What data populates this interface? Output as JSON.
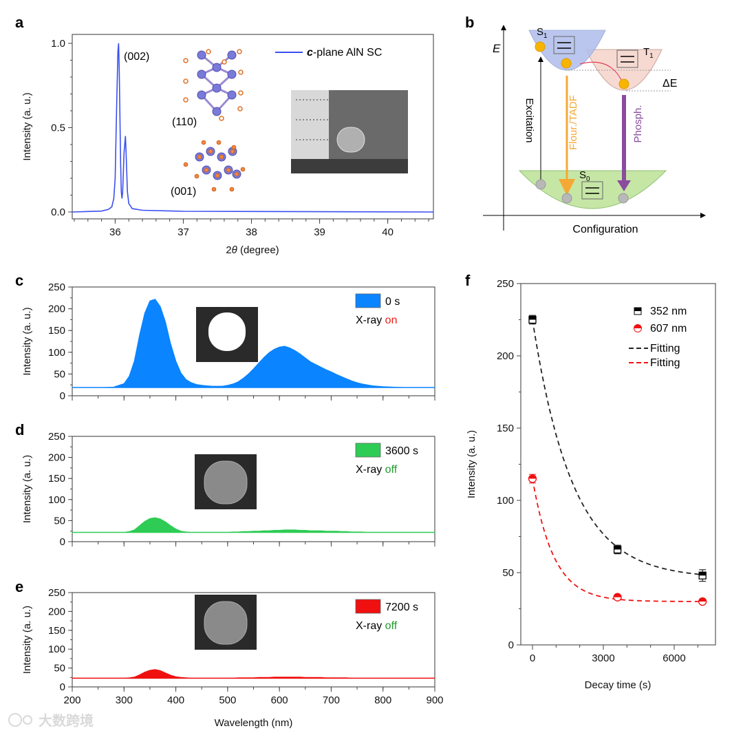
{
  "panels": {
    "a": "a",
    "b": "b",
    "c": "c",
    "d": "d",
    "e": "e",
    "f": "f"
  },
  "watermark": "大数跨境",
  "chart_data": [
    {
      "id": "a",
      "type": "line",
      "xlabel_prefix": "2",
      "xlabel_theta": "θ",
      "xlabel_suffix": " (degree)",
      "ylabel": "Intensity (a. u.)",
      "xlim": [
        35.37,
        40.67
      ],
      "ylim": [
        -0.041,
        1.053
      ],
      "xticks": [
        36,
        37,
        38,
        39,
        40
      ],
      "yticks": [
        0.0,
        0.5,
        1.0
      ],
      "ytick_labels": [
        "0.0",
        "0.5",
        "1.0"
      ],
      "legend": {
        "bold_part": "c",
        "rest": "-plane AlN SC",
        "position": "top-right"
      },
      "color": "#3a4ff0",
      "annotations": {
        "peak": "(002)",
        "plane1": "(110)",
        "plane2": "(001)"
      },
      "x": [
        35.37,
        35.8,
        35.9,
        35.95,
        35.98,
        36.0,
        36.02,
        36.04,
        36.05,
        36.06,
        36.08,
        36.09,
        36.1,
        36.11,
        36.13,
        36.15,
        36.16,
        36.18,
        36.2,
        36.25,
        36.4,
        37.0,
        40.67
      ],
      "y": [
        0.0,
        0.005,
        0.015,
        0.03,
        0.08,
        0.2,
        0.6,
        0.95,
        1.0,
        0.85,
        0.3,
        0.12,
        0.08,
        0.12,
        0.35,
        0.45,
        0.35,
        0.12,
        0.05,
        0.02,
        0.01,
        0.004,
        0.0
      ]
    },
    {
      "id": "c",
      "type": "area",
      "ylabel": "Intensity (a. u.)",
      "xlim": [
        200,
        900
      ],
      "ylim": [
        0,
        250
      ],
      "yticks": [
        0,
        50,
        100,
        150,
        200,
        250
      ],
      "color": "#0a84ff",
      "legend": {
        "label": "0 s",
        "xray": "X-ray ",
        "state": "on",
        "state_color": "#e8221c",
        "position": "top-right"
      },
      "x": [
        200,
        220,
        240,
        260,
        280,
        300,
        310,
        320,
        330,
        340,
        350,
        360,
        370,
        380,
        390,
        400,
        410,
        420,
        430,
        440,
        450,
        460,
        470,
        480,
        490,
        500,
        510,
        520,
        530,
        540,
        550,
        560,
        570,
        580,
        590,
        600,
        610,
        620,
        630,
        640,
        650,
        660,
        670,
        680,
        690,
        700,
        710,
        720,
        730,
        740,
        750,
        760,
        770,
        780,
        790,
        800,
        820,
        840,
        860,
        880,
        900
      ],
      "y": [
        19,
        19,
        19,
        19,
        20,
        28,
        45,
        80,
        140,
        190,
        218,
        222,
        205,
        170,
        120,
        80,
        52,
        37,
        30,
        26,
        24,
        23,
        22,
        22,
        22,
        24,
        27,
        32,
        40,
        50,
        62,
        75,
        88,
        99,
        107,
        112,
        114,
        110,
        104,
        96,
        87,
        78,
        72,
        66,
        60,
        55,
        49,
        44,
        39,
        34,
        30,
        27,
        25,
        23,
        22,
        21,
        20,
        19,
        19,
        19,
        19
      ]
    },
    {
      "id": "d",
      "type": "area",
      "ylabel": "Intensity (a. u.)",
      "xlim": [
        200,
        900
      ],
      "ylim": [
        0,
        250
      ],
      "yticks": [
        0,
        50,
        100,
        150,
        200,
        250
      ],
      "color": "#2ecc55",
      "legend": {
        "label": "3600 s",
        "xray": "X-ray ",
        "state": "off",
        "state_color": "#1f9a2a",
        "position": "top-right"
      },
      "x": [
        200,
        220,
        240,
        260,
        280,
        300,
        310,
        320,
        330,
        340,
        350,
        360,
        370,
        380,
        390,
        400,
        410,
        420,
        430,
        440,
        450,
        460,
        470,
        480,
        490,
        500,
        510,
        520,
        530,
        540,
        550,
        560,
        570,
        580,
        590,
        600,
        610,
        620,
        630,
        640,
        650,
        660,
        670,
        680,
        690,
        700,
        710,
        720,
        730,
        740,
        750,
        760,
        770,
        780,
        790,
        800,
        820,
        840,
        860,
        880,
        900
      ],
      "y": [
        22,
        22,
        22,
        22,
        22,
        22,
        24,
        28,
        38,
        48,
        55,
        57,
        54,
        47,
        38,
        30,
        25,
        23,
        22,
        22,
        22,
        22,
        22,
        22,
        22,
        22,
        23,
        23,
        24,
        24,
        25,
        25,
        26,
        26,
        27,
        27,
        28,
        28,
        28,
        27,
        27,
        26,
        26,
        26,
        25,
        25,
        25,
        24,
        24,
        23,
        23,
        23,
        22,
        22,
        22,
        22,
        22,
        22,
        22,
        22,
        22
      ]
    },
    {
      "id": "e",
      "type": "area",
      "ylabel": "Intensity (a. u.)",
      "xlabel": "Wavelength (nm)",
      "xlim": [
        200,
        900
      ],
      "ylim": [
        0,
        250
      ],
      "xticks": [
        200,
        300,
        400,
        500,
        600,
        700,
        800,
        900
      ],
      "yticks": [
        0,
        50,
        100,
        150,
        200,
        250
      ],
      "color": "#f01010",
      "legend": {
        "label": "7200 s",
        "xray": "X-ray ",
        "state": "off",
        "state_color": "#1f9a2a",
        "position": "top-right"
      },
      "x": [
        200,
        220,
        240,
        260,
        280,
        300,
        310,
        320,
        330,
        340,
        350,
        360,
        370,
        380,
        390,
        400,
        410,
        420,
        430,
        440,
        450,
        460,
        470,
        480,
        490,
        500,
        510,
        520,
        530,
        540,
        550,
        560,
        570,
        580,
        590,
        600,
        610,
        620,
        630,
        640,
        650,
        660,
        670,
        680,
        690,
        700,
        710,
        720,
        730,
        740,
        750,
        760,
        770,
        780,
        790,
        800,
        820,
        840,
        860,
        880,
        900
      ],
      "y": [
        23,
        23,
        23,
        23,
        23,
        23,
        24,
        26,
        32,
        39,
        44,
        46,
        43,
        37,
        31,
        27,
        25,
        24,
        23,
        23,
        23,
        23,
        23,
        23,
        23,
        23,
        23,
        24,
        24,
        24,
        24,
        25,
        25,
        25,
        26,
        26,
        26,
        26,
        26,
        26,
        25,
        25,
        25,
        25,
        24,
        24,
        24,
        24,
        24,
        23,
        23,
        23,
        23,
        23,
        23,
        23,
        23,
        23,
        23,
        23,
        23
      ]
    },
    {
      "id": "f",
      "type": "scatter",
      "xlabel": "Decay time (s)",
      "ylabel": "Intensity (a. u.)",
      "xlim": [
        -495,
        7748
      ],
      "ylim": [
        0,
        250
      ],
      "xticks": [
        0,
        3000,
        6000
      ],
      "yticks": [
        0,
        50,
        100,
        150,
        200,
        250
      ],
      "legend_position": "top-right",
      "series": [
        {
          "name": "352 nm",
          "color": "#000000",
          "marker": "square",
          "x": [
            0,
            3600,
            7200
          ],
          "y": [
            225,
            66,
            48
          ],
          "err": [
            3,
            3,
            4
          ]
        },
        {
          "name": "607 nm",
          "color": "#f01010",
          "marker": "circle",
          "x": [
            0,
            3600,
            7200
          ],
          "y": [
            115,
            33,
            30
          ],
          "err": [
            3,
            1,
            1
          ]
        }
      ],
      "fits": [
        {
          "name": "Fitting",
          "color": "#222222",
          "y0": 46,
          "A": 179,
          "tau": 1700
        },
        {
          "name": "Fitting",
          "color": "#f01010",
          "y0": 30,
          "A": 85,
          "tau": 900
        }
      ]
    }
  ],
  "diagram": {
    "e_axis": "E",
    "x_axis": "Configuration",
    "s1": "S",
    "s1_sub": "1",
    "t1": "T",
    "t1_sub": "1",
    "s0": "S",
    "s0_sub": "0",
    "delta_e": "ΔE",
    "excitation": "Excitation",
    "fluor": "Flour./TADF",
    "phosph": "Phosph.",
    "colors": {
      "s1": "#b3c0ec",
      "t1": "#f6d9d0",
      "s0": "#c6e6a6",
      "electron": "#f7b500",
      "ground": "#b8b8b8",
      "fluor": "#f5a833",
      "phosph": "#8a4c9e"
    }
  }
}
